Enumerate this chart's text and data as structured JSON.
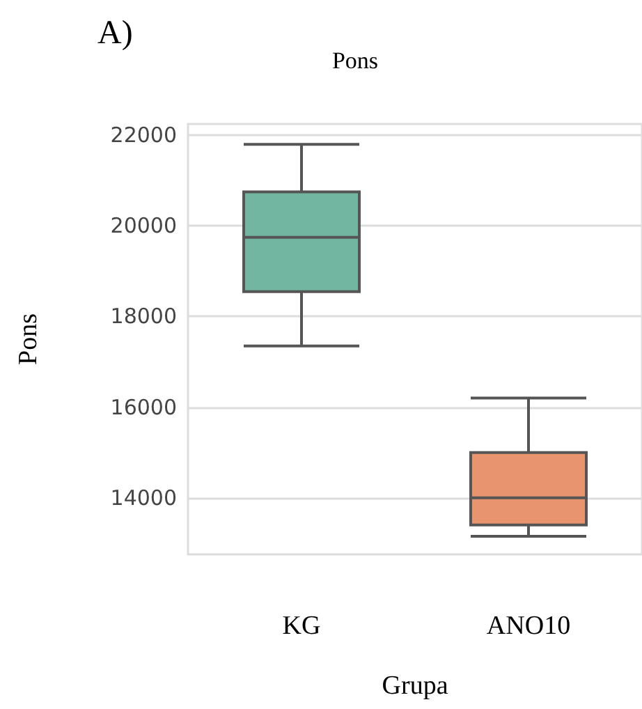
{
  "chart_data": {
    "type": "box",
    "title": "Pons",
    "annotations": [
      "A)"
    ],
    "xlabel": "Grupa",
    "ylabel": "Pons",
    "categories": [
      "KG",
      "ANO10"
    ],
    "colors": [
      "#72b6a1",
      "#e8956f"
    ],
    "boxes": [
      {
        "low": 17350,
        "q1": 18550,
        "median": 19750,
        "q3": 20750,
        "high": 21800
      },
      {
        "low": 13150,
        "q1": 13400,
        "median": 14000,
        "q3": 15000,
        "high": 16200
      }
    ],
    "ylim": [
      12750,
      22250
    ],
    "yticks": [
      14000,
      16000,
      18000,
      20000,
      22000
    ],
    "grid": "y"
  }
}
